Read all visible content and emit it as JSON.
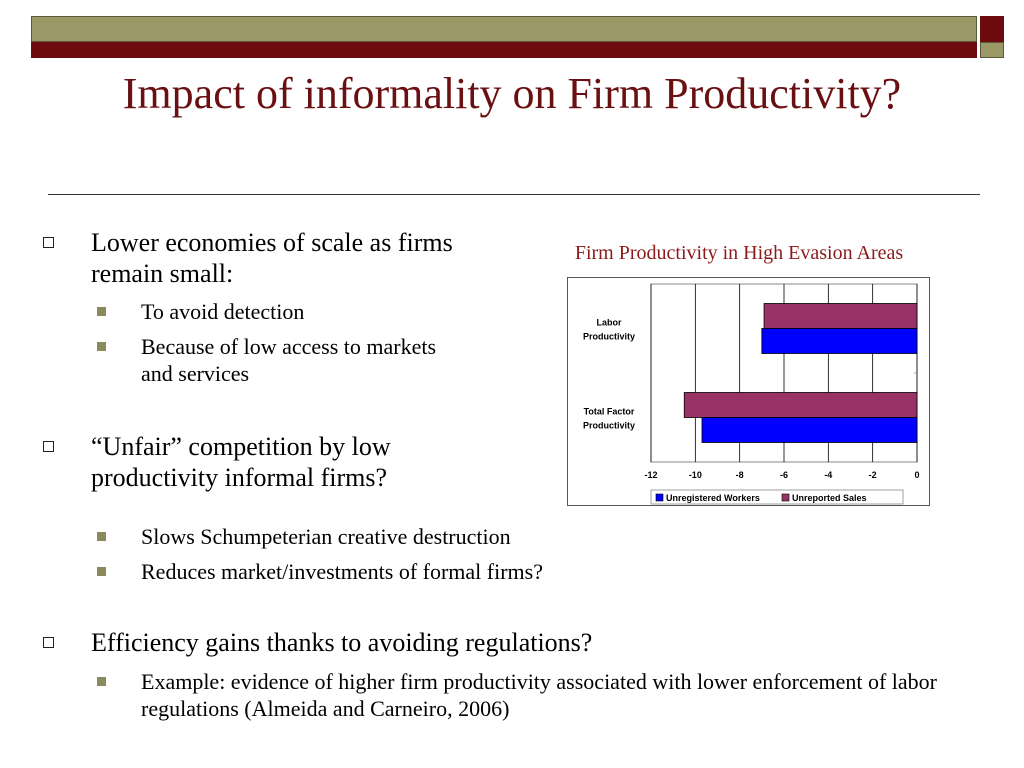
{
  "slide": {
    "title": "Impact of informality on Firm Productivity?",
    "bullets": [
      {
        "text": "Lower economies of scale as firms remain small:",
        "sub": [
          "To avoid detection",
          "Because of low access to markets and services"
        ]
      },
      {
        "text": "“Unfair” competition by low productivity informal firms?",
        "sub": [
          "Slows Schumpeterian creative destruction",
          "Reduces market/investments of formal firms?"
        ]
      },
      {
        "text": "Efficiency gains thanks to avoiding regulations?",
        "sub": [
          "Example: evidence of higher firm productivity associated with  lower enforcement of labor regulations (Almeida and Carneiro, 2006)"
        ]
      }
    ]
  },
  "chart_data": {
    "type": "bar",
    "orientation": "horizontal",
    "title": "Firm Productivity in High Evasion Areas",
    "categories": [
      "Labor Productivity",
      "Total Factor Productivity"
    ],
    "series": [
      {
        "name": "Unreported Sales",
        "color": "#993366",
        "values": [
          -6.9,
          -10.5
        ]
      },
      {
        "name": "Unregistered Workers",
        "color": "#0000ff",
        "values": [
          -7.0,
          -9.7
        ]
      }
    ],
    "xlim": [
      -12,
      0
    ],
    "xticks": [
      "-12",
      "-10",
      "-8",
      "-6",
      "-4",
      "-2",
      "0"
    ],
    "legend": [
      "Unregistered Workers",
      "Unreported Sales"
    ],
    "legend_position": "bottom",
    "grid": true
  }
}
